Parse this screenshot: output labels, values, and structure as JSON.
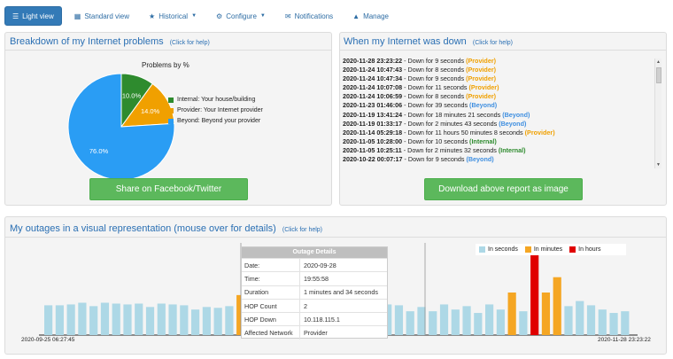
{
  "nav": {
    "items": [
      {
        "label": "Light view",
        "icon": "list-icon",
        "active": true
      },
      {
        "label": "Standard view",
        "icon": "grid-icon"
      },
      {
        "label": "Historical",
        "icon": "star-icon",
        "dropdown": true
      },
      {
        "label": "Configure",
        "icon": "gear-icon",
        "dropdown": true
      },
      {
        "label": "Notifications",
        "icon": "envelope-icon"
      },
      {
        "label": "Manage",
        "icon": "warning-icon"
      }
    ]
  },
  "breakdown": {
    "title": "Breakdown of my Internet problems",
    "help": "(Click for help)",
    "chart_data": {
      "type": "pie",
      "title": "Problems by %",
      "slices": [
        {
          "name": "Internal: Your house/building",
          "value": 10.0,
          "label": "10.0%",
          "color": "#2e8b2e"
        },
        {
          "name": "Provider: Your Internet provider",
          "value": 14.0,
          "label": "14.0%",
          "color": "#f0a000"
        },
        {
          "name": "Beyond: Beyond your provider",
          "value": 76.0,
          "label": "76.0%",
          "color": "#2a9df4"
        }
      ]
    },
    "share_button": "Share on Facebook/Twitter"
  },
  "downtime": {
    "title": "When my Internet was down",
    "help": "(Click for help)",
    "entries": [
      {
        "ts": "2020-11-28 23:23:22",
        "text": " - Down for 9 seconds ",
        "tag": "(Provider)",
        "kind": "provider"
      },
      {
        "ts": "2020-11-24 10:47:43",
        "text": " - Down for 8 seconds ",
        "tag": "(Provider)",
        "kind": "provider"
      },
      {
        "ts": "2020-11-24 10:47:34",
        "text": " - Down for 9 seconds ",
        "tag": "(Provider)",
        "kind": "provider"
      },
      {
        "ts": "2020-11-24 10:07:08",
        "text": " - Down for 11 seconds ",
        "tag": "(Provider)",
        "kind": "provider"
      },
      {
        "ts": "2020-11-24 10:06:59",
        "text": " - Down for 8 seconds ",
        "tag": "(Provider)",
        "kind": "provider"
      },
      {
        "ts": "2020-11-23 01:46:06",
        "text": " - Down for 39 seconds ",
        "tag": "(Beyond)",
        "kind": "beyond"
      },
      {
        "ts": "2020-11-19 13:41:24",
        "text": " - Down for 18 minutes 21 seconds ",
        "tag": "(Beyond)",
        "kind": "beyond"
      },
      {
        "ts": "2020-11-19 01:33:17",
        "text": " - Down for 2 minutes 43 seconds ",
        "tag": "(Beyond)",
        "kind": "beyond"
      },
      {
        "ts": "2020-11-14 05:29:18",
        "text": " - Down for 11 hours 50 minutes 8 seconds ",
        "tag": "(Provider)",
        "kind": "provider"
      },
      {
        "ts": "2020-11-05 10:28:00",
        "text": " - Down for 10 seconds ",
        "tag": "(Internal)",
        "kind": "internal"
      },
      {
        "ts": "2020-11-05 10:25:11",
        "text": " - Down for 2 minutes 32 seconds ",
        "tag": "(Internal)",
        "kind": "internal"
      },
      {
        "ts": "2020-10-22 00:07:17",
        "text": " - Down for 9 seconds ",
        "tag": "(Beyond)",
        "kind": "beyond"
      }
    ],
    "download_button": "Download above report as image"
  },
  "outages": {
    "title": "My outages in a visual representation (mouse over for details)",
    "help": "(Click for help)",
    "x_start": "2020-09-25 06:27:45",
    "x_end": "2020-11-28 23:23:22",
    "chart_data": {
      "type": "bar",
      "legend": [
        {
          "name": "In seconds",
          "color": "#add8e6"
        },
        {
          "name": "In minutes",
          "color": "#f5a623"
        },
        {
          "name": "In hours",
          "color": "#e00000"
        }
      ],
      "bars": [
        {
          "v": 0.35,
          "c": "s"
        },
        {
          "v": 0.35,
          "c": "s"
        },
        {
          "v": 0.36,
          "c": "s"
        },
        {
          "v": 0.38,
          "c": "s"
        },
        {
          "v": 0.34,
          "c": "s"
        },
        {
          "v": 0.38,
          "c": "s"
        },
        {
          "v": 0.37,
          "c": "s"
        },
        {
          "v": 0.36,
          "c": "s"
        },
        {
          "v": 0.37,
          "c": "s"
        },
        {
          "v": 0.33,
          "c": "s"
        },
        {
          "v": 0.37,
          "c": "s"
        },
        {
          "v": 0.36,
          "c": "s"
        },
        {
          "v": 0.35,
          "c": "s"
        },
        {
          "v": 0.3,
          "c": "s"
        },
        {
          "v": 0.33,
          "c": "s"
        },
        {
          "v": 0.32,
          "c": "s"
        },
        {
          "v": 0.34,
          "c": "s"
        },
        {
          "v": 0.47,
          "c": "m"
        },
        {
          "v": 0.2,
          "c": "s"
        },
        {
          "v": 0.2,
          "c": "s"
        },
        {
          "v": 0.2,
          "c": "s"
        },
        {
          "v": 0.2,
          "c": "s"
        },
        {
          "v": 0.2,
          "c": "s"
        },
        {
          "v": 0.2,
          "c": "s"
        },
        {
          "v": 0.2,
          "c": "s"
        },
        {
          "v": 0.2,
          "c": "s"
        },
        {
          "v": 0.2,
          "c": "s"
        },
        {
          "v": 0.2,
          "c": "s"
        },
        {
          "v": 0.2,
          "c": "s"
        },
        {
          "v": 0.2,
          "c": "s"
        },
        {
          "v": 0.36,
          "c": "s"
        },
        {
          "v": 0.35,
          "c": "s"
        },
        {
          "v": 0.28,
          "c": "s"
        },
        {
          "v": 0.33,
          "c": "s"
        },
        {
          "v": 0.28,
          "c": "s"
        },
        {
          "v": 0.36,
          "c": "s"
        },
        {
          "v": 0.3,
          "c": "s"
        },
        {
          "v": 0.34,
          "c": "s"
        },
        {
          "v": 0.26,
          "c": "s"
        },
        {
          "v": 0.36,
          "c": "s"
        },
        {
          "v": 0.3,
          "c": "s"
        },
        {
          "v": 0.5,
          "c": "m"
        },
        {
          "v": 0.28,
          "c": "s"
        },
        {
          "v": 1.0,
          "c": "h"
        },
        {
          "v": 0.5,
          "c": "m"
        },
        {
          "v": 0.68,
          "c": "m"
        },
        {
          "v": 0.34,
          "c": "s"
        },
        {
          "v": 0.4,
          "c": "s"
        },
        {
          "v": 0.35,
          "c": "s"
        },
        {
          "v": 0.3,
          "c": "s"
        },
        {
          "v": 0.26,
          "c": "s"
        },
        {
          "v": 0.28,
          "c": "s"
        }
      ]
    },
    "tooltip": {
      "header": "Outage Details",
      "rows": [
        {
          "k": "Date:",
          "v": "2020-09-28"
        },
        {
          "k": "Time:",
          "v": "19:55:58"
        },
        {
          "k": "Duration",
          "v": "1 minutes and 34 seconds"
        },
        {
          "k": "HOP Count",
          "v": "2"
        },
        {
          "k": "HOP Down",
          "v": "10.118.115.1"
        },
        {
          "k": "Affected Network",
          "v": "Provider"
        }
      ]
    }
  }
}
